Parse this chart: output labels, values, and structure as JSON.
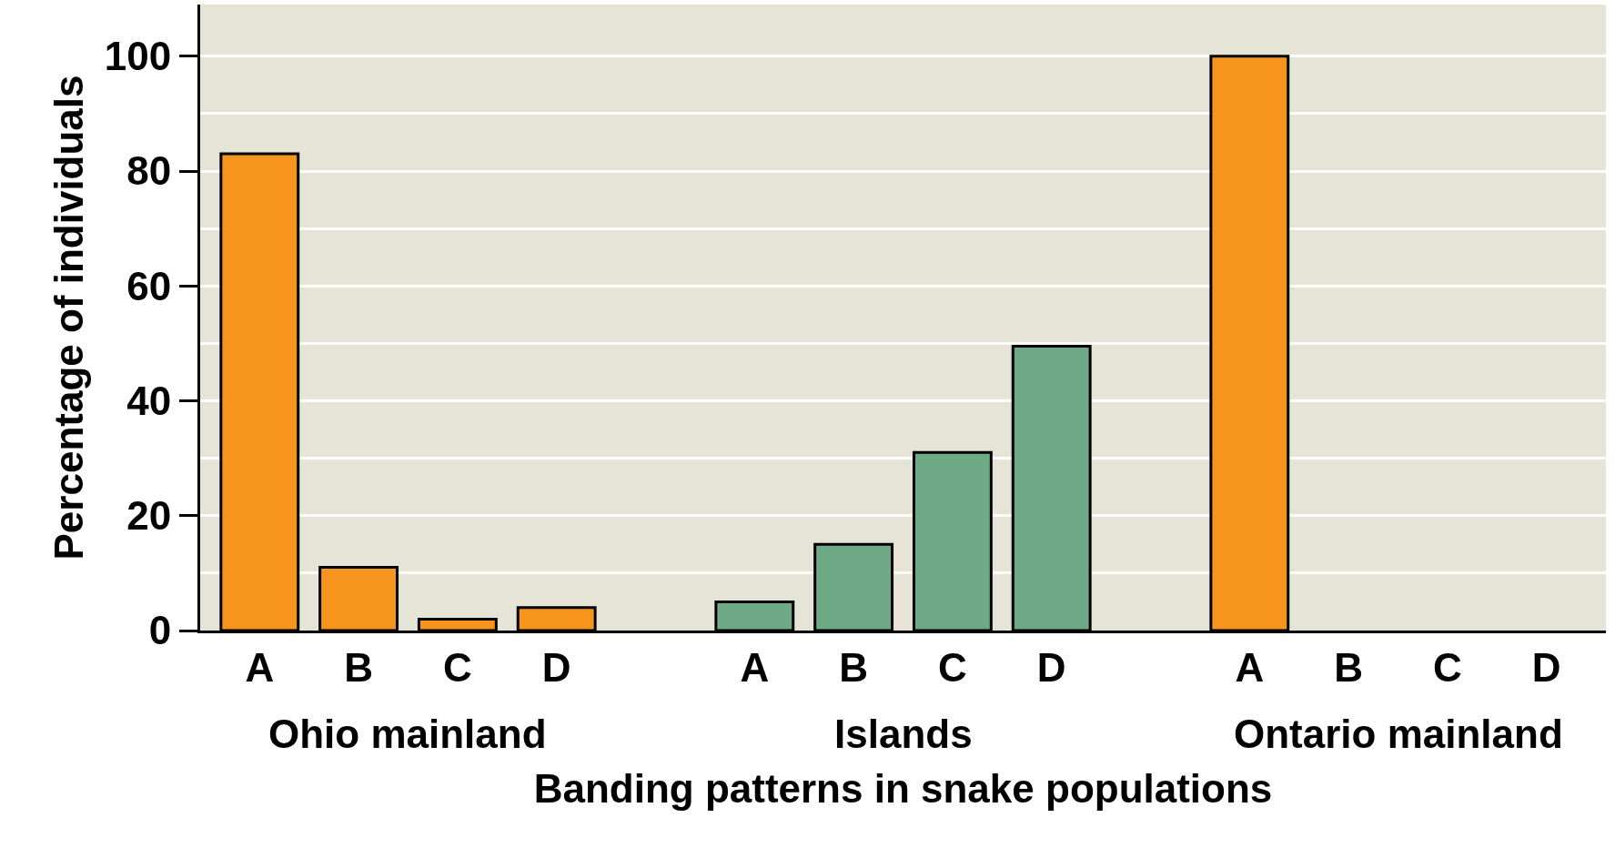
{
  "chart_data": {
    "type": "bar",
    "xlabel": "Banding patterns in snake populations",
    "ylabel": "Percentage of individuals",
    "categories": [
      "A",
      "B",
      "C",
      "D",
      null,
      "A",
      "B",
      "C",
      "D",
      null,
      "A",
      "B",
      "C",
      "D"
    ],
    "values": [
      83,
      11,
      2,
      4,
      null,
      5,
      15,
      31,
      49.5,
      null,
      100,
      0,
      0,
      0
    ],
    "colors": [
      "#f7941d",
      "#f7941d",
      "#f7941d",
      "#f7941d",
      "#f7941d",
      "#6daa85",
      "#6daa85",
      "#6daa85",
      "#6daa85",
      "#f7941d",
      "#f7941d",
      "#f7941d",
      "#f7941d",
      "#f7941d"
    ],
    "ylim": [
      0,
      109
    ],
    "yticks": [
      0,
      20,
      40,
      60,
      80,
      100
    ],
    "grid": "y",
    "annotations": [
      "Ohio mainland",
      "Islands",
      "Ontario mainland"
    ]
  }
}
